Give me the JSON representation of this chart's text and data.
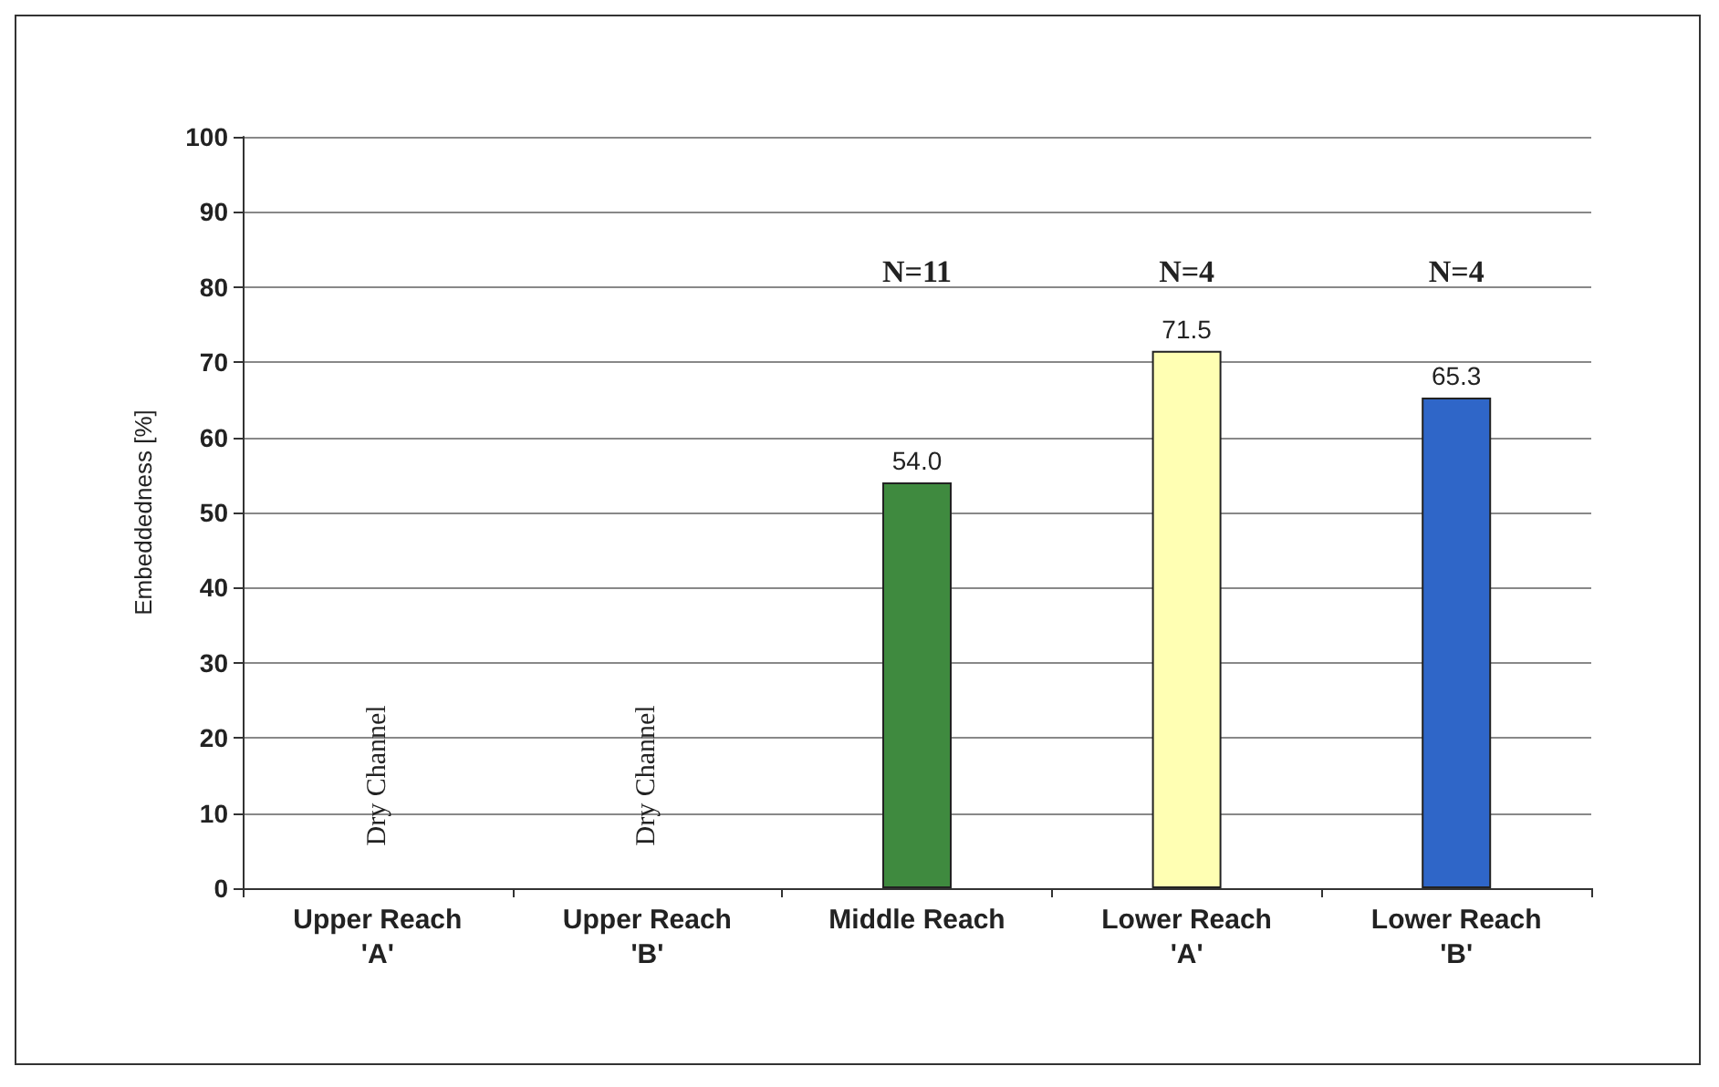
{
  "chart_data": {
    "type": "bar",
    "ylabel": "Embeddedness [%]",
    "categories": [
      "Upper Reach 'A'",
      "Upper Reach 'B'",
      "Middle Reach",
      "Lower Reach 'A'",
      "Lower Reach 'B'"
    ],
    "values": [
      null,
      null,
      54.0,
      71.5,
      65.3
    ],
    "colors": [
      "#3f8a3f",
      "#3f8a3f",
      "#3f8a3f",
      "#ffffb3",
      "#2f66c8"
    ],
    "value_labels": [
      null,
      null,
      "54.0",
      "71.5",
      "65.3"
    ],
    "ylim": [
      0,
      100
    ],
    "yticks": [
      0,
      10,
      20,
      30,
      40,
      50,
      60,
      70,
      80,
      90,
      100
    ],
    "grid": "y",
    "annotations": [
      "Dry Channel",
      "Dry Channel",
      "N=11",
      "N=4",
      "N=4"
    ]
  }
}
